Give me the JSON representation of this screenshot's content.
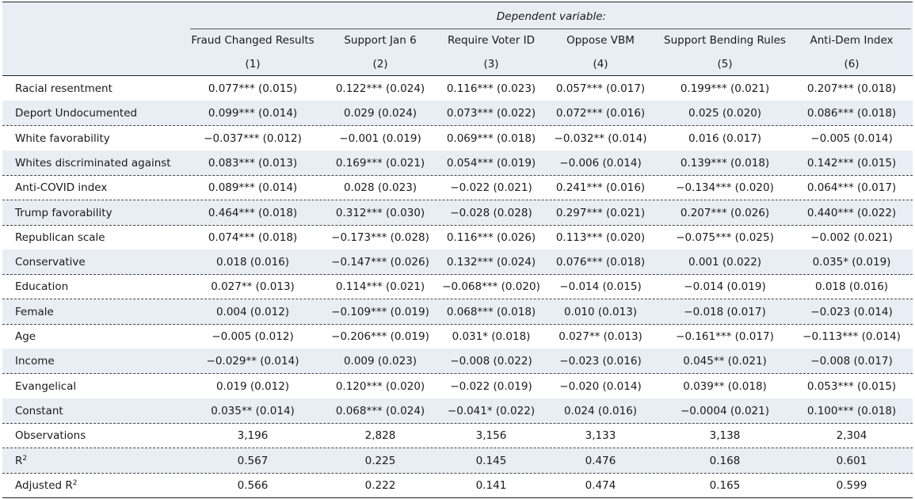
{
  "header": {
    "dependent_variable": "Dependent variable:",
    "columns": [
      {
        "name": "Fraud Changed Results",
        "num": "(1)"
      },
      {
        "name": "Support Jan 6",
        "num": "(2)"
      },
      {
        "name": "Require Voter ID",
        "num": "(3)"
      },
      {
        "name": "Oppose VBM",
        "num": "(4)"
      },
      {
        "name": "Support Bending Rules",
        "num": "(5)"
      },
      {
        "name": "Anti-Dem Index",
        "num": "(6)"
      }
    ]
  },
  "rows": [
    {
      "label": "Racial resentment",
      "cells": [
        "0.077*** (0.015)",
        "0.122*** (0.024)",
        "0.116*** (0.023)",
        "0.057*** (0.017)",
        "0.199*** (0.021)",
        "0.207*** (0.018)"
      ]
    },
    {
      "label": "Deport Undocumented",
      "cells": [
        "0.099*** (0.014)",
        "0.029 (0.024)",
        "0.073*** (0.022)",
        "0.072*** (0.016)",
        "0.025 (0.020)",
        "0.086*** (0.018)"
      ]
    },
    {
      "label": "White favorability",
      "cells": [
        "−0.037*** (0.012)",
        "−0.001 (0.019)",
        "0.069*** (0.018)",
        "−0.032** (0.014)",
        "0.016 (0.017)",
        "−0.005 (0.014)"
      ]
    },
    {
      "label": "Whites discriminated against",
      "cells": [
        "0.083*** (0.013)",
        "0.169*** (0.021)",
        "0.054*** (0.019)",
        "−0.006 (0.014)",
        "0.139*** (0.018)",
        "0.142*** (0.015)"
      ]
    },
    {
      "label": "Anti-COVID index",
      "cells": [
        "0.089*** (0.014)",
        "0.028 (0.023)",
        "−0.022 (0.021)",
        "0.241*** (0.016)",
        "−0.134*** (0.020)",
        "0.064*** (0.017)"
      ]
    },
    {
      "label": "Trump favorability",
      "cells": [
        "0.464*** (0.018)",
        "0.312*** (0.030)",
        "−0.028 (0.028)",
        "0.297*** (0.021)",
        "0.207*** (0.026)",
        "0.440*** (0.022)"
      ]
    },
    {
      "label": "Republican scale",
      "cells": [
        "0.074*** (0.018)",
        "−0.173*** (0.028)",
        "0.116*** (0.026)",
        "0.113*** (0.020)",
        "−0.075*** (0.025)",
        "−0.002 (0.021)"
      ]
    },
    {
      "label": "Conservative",
      "cells": [
        "0.018 (0.016)",
        "−0.147*** (0.026)",
        "0.132*** (0.024)",
        "0.076*** (0.018)",
        "0.001 (0.022)",
        "0.035* (0.019)"
      ]
    },
    {
      "label": "Education",
      "cells": [
        "0.027** (0.013)",
        "0.114*** (0.021)",
        "−0.068*** (0.020)",
        "−0.014 (0.015)",
        "−0.014 (0.019)",
        "0.018 (0.016)"
      ]
    },
    {
      "label": "Female",
      "cells": [
        "0.004 (0.012)",
        "−0.109*** (0.019)",
        "0.068*** (0.018)",
        "0.010 (0.013)",
        "−0.018 (0.017)",
        "−0.023 (0.014)"
      ]
    },
    {
      "label": "Age",
      "cells": [
        "−0.005 (0.012)",
        "−0.206*** (0.019)",
        "0.031* (0.018)",
        "0.027** (0.013)",
        "−0.161*** (0.017)",
        "−0.113*** (0.014)"
      ]
    },
    {
      "label": "Income",
      "cells": [
        "−0.029** (0.014)",
        "0.009 (0.023)",
        "−0.008 (0.022)",
        "−0.023 (0.016)",
        "0.045** (0.021)",
        "−0.008 (0.017)"
      ]
    },
    {
      "label": "Evangelical",
      "cells": [
        "0.019 (0.012)",
        "0.120*** (0.020)",
        "−0.022 (0.019)",
        "−0.020 (0.014)",
        "0.039** (0.018)",
        "0.053*** (0.015)"
      ]
    },
    {
      "label": "Constant",
      "cells": [
        "0.035** (0.014)",
        "0.068*** (0.024)",
        "−0.041* (0.022)",
        "0.024 (0.016)",
        "−0.0004 (0.021)",
        "0.100*** (0.018)"
      ]
    },
    {
      "label": "Observations",
      "cells": [
        "3,196",
        "2,828",
        "3,156",
        "3,133",
        "3,138",
        "2,304"
      ]
    }
  ],
  "r2_row": {
    "label": "R",
    "sup": "2",
    "cells": [
      "0.567",
      "0.225",
      "0.145",
      "0.476",
      "0.168",
      "0.601"
    ]
  },
  "adj_r2_row": {
    "label": "Adjusted R",
    "sup": "2",
    "cells": [
      "0.566",
      "0.222",
      "0.141",
      "0.474",
      "0.165",
      "0.599"
    ]
  }
}
